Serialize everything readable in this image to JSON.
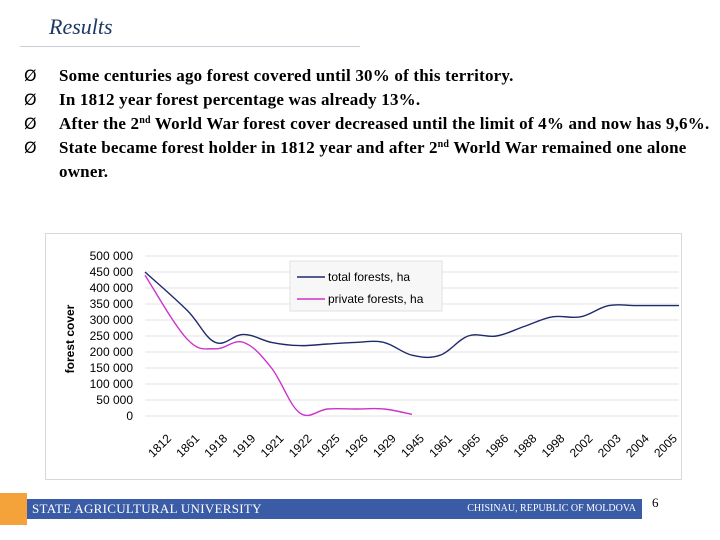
{
  "slide": {
    "title": "Results",
    "bullets": [
      {
        "arrow": "Ø",
        "parts": [
          "Some centuries ago forest covered until 30% of this territory."
        ]
      },
      {
        "arrow": "Ø",
        "parts": [
          "In 1812 year forest percentage was already 13%."
        ]
      },
      {
        "arrow": "Ø",
        "parts": [
          "After the 2",
          "nd",
          " World War forest cover decreased until the limit of 4% and now has 9,6%."
        ]
      },
      {
        "arrow": "Ø",
        "parts": [
          "State became forest holder in 1812 year and after 2",
          "nd",
          " World War remained one alone owner."
        ]
      }
    ]
  },
  "chart_data": {
    "type": "line",
    "ylabel": "forest cover",
    "xlabel": "",
    "ylim": [
      0,
      500000
    ],
    "yticks": [
      "0",
      "50 000",
      "100 000",
      "150 000",
      "200 000",
      "250 000",
      "300 000",
      "350 000",
      "400 000",
      "450 000",
      "500 000"
    ],
    "categories": [
      "1812",
      "1861",
      "1918",
      "1919",
      "1921",
      "1922",
      "1925",
      "1926",
      "1929",
      "1945",
      "1961",
      "1965",
      "1986",
      "1988",
      "1998",
      "2002",
      "2003",
      "2004",
      "2005"
    ],
    "legend_position": "top-center",
    "series": [
      {
        "name": "total forests, ha",
        "color": "#1f2a6b",
        "values": [
          450000,
          330000,
          230000,
          255000,
          230000,
          220000,
          225000,
          230000,
          230000,
          190000,
          190000,
          250000,
          250000,
          280000,
          310000,
          310000,
          345000,
          345000,
          345000
        ]
      },
      {
        "name": "private forests, ha",
        "color": "#cc33cc",
        "values": [
          440000,
          240000,
          210000,
          230000,
          150000,
          10000,
          22000,
          22000,
          22000,
          5000,
          null,
          null,
          null,
          null,
          null,
          null,
          null,
          null,
          null
        ]
      }
    ]
  },
  "footer": {
    "university": "STATE AGRICULTURAL UNIVERSITY",
    "city": "CHISINAU, REPUBLIC OF MOLDOVA",
    "page": "6"
  }
}
